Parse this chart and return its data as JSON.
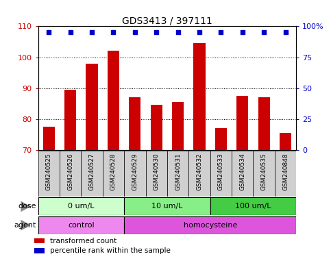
{
  "title": "GDS3413 / 397111",
  "samples": [
    "GSM240525",
    "GSM240526",
    "GSM240527",
    "GSM240528",
    "GSM240529",
    "GSM240530",
    "GSM240531",
    "GSM240532",
    "GSM240533",
    "GSM240534",
    "GSM240535",
    "GSM240848"
  ],
  "bar_values": [
    77.5,
    89.5,
    98.0,
    102.0,
    87.0,
    84.5,
    85.5,
    104.5,
    77.0,
    87.5,
    87.0,
    75.5
  ],
  "bar_color": "#cc0000",
  "percentile_color": "#0000cc",
  "ylim_left": [
    70,
    110
  ],
  "ylim_right": [
    0,
    100
  ],
  "yticks_left": [
    70,
    80,
    90,
    100,
    110
  ],
  "yticks_right": [
    0,
    25,
    50,
    75,
    100
  ],
  "ytick_labels_right": [
    "0",
    "25",
    "50",
    "75",
    "100%"
  ],
  "dose_groups": [
    {
      "label": "0 um/L",
      "start": 0,
      "end": 4,
      "color": "#ccffcc"
    },
    {
      "label": "10 um/L",
      "start": 4,
      "end": 8,
      "color": "#88ee88"
    },
    {
      "label": "100 um/L",
      "start": 8,
      "end": 12,
      "color": "#44cc44"
    }
  ],
  "agent_groups": [
    {
      "label": "control",
      "start": 0,
      "end": 4,
      "color": "#ee88ee"
    },
    {
      "label": "homocysteine",
      "start": 4,
      "end": 12,
      "color": "#dd55dd"
    }
  ],
  "dose_label": "dose",
  "agent_label": "agent",
  "legend_items": [
    {
      "color": "#cc0000",
      "label": "transformed count"
    },
    {
      "color": "#0000cc",
      "label": "percentile rank within the sample"
    }
  ],
  "bar_width": 0.55,
  "sample_box_color": "#d0d0d0",
  "arrow_color": "#888888"
}
